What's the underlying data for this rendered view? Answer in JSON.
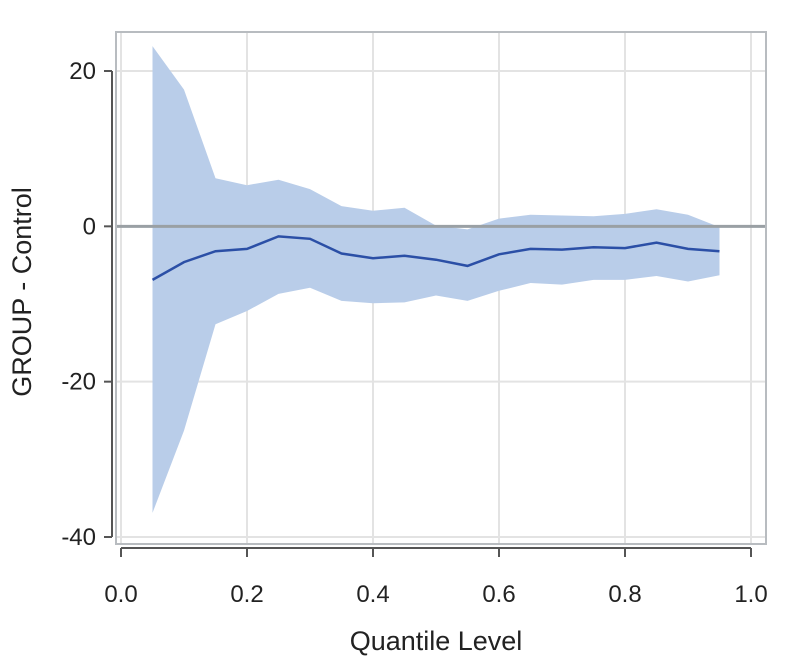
{
  "chart_data": {
    "type": "area",
    "title": "",
    "xlabel": "Quantile Level",
    "ylabel": "GROUP - Control",
    "xlim": [
      0.0,
      1.0
    ],
    "ylim": [
      -40,
      25
    ],
    "xticks": [
      "0.0",
      "0.2",
      "0.4",
      "0.6",
      "0.8",
      "1.0"
    ],
    "xtick_values": [
      0.0,
      0.2,
      0.4,
      0.6,
      0.8,
      1.0
    ],
    "yticks": [
      "20",
      "0",
      "-20",
      "-40"
    ],
    "ytick_values": [
      20,
      0,
      -20,
      -40
    ],
    "grid": true,
    "reference_line_y": 0,
    "x": [
      0.05,
      0.1,
      0.15,
      0.2,
      0.25,
      0.3,
      0.35,
      0.4,
      0.45,
      0.5,
      0.55,
      0.6,
      0.65,
      0.7,
      0.75,
      0.8,
      0.85,
      0.9,
      0.95
    ],
    "series": [
      {
        "values": [
          -6.9,
          -4.6,
          -3.2,
          -2.9,
          -1.3,
          -1.6,
          -3.5,
          -4.1,
          -3.8,
          -4.3,
          -5.1,
          -3.6,
          -2.9,
          -3.0,
          -2.7,
          -2.8,
          -2.1,
          -2.9,
          -3.2
        ]
      }
    ],
    "band": {
      "upper": [
        23.2,
        17.6,
        6.2,
        5.3,
        6.0,
        4.8,
        2.6,
        2.0,
        2.4,
        0.1,
        -0.4,
        1.0,
        1.5,
        1.4,
        1.3,
        1.6,
        2.2,
        1.5,
        -0.1
      ],
      "lower": [
        -36.9,
        -26.3,
        -12.6,
        -10.9,
        -8.7,
        -7.9,
        -9.6,
        -9.9,
        -9.8,
        -8.9,
        -9.6,
        -8.3,
        -7.3,
        -7.5,
        -6.9,
        -6.9,
        -6.4,
        -7.1,
        -6.3
      ]
    },
    "colors": {
      "line": "#2b4fa6",
      "band": "#b9cde9",
      "reference": "#9aa0a4",
      "grid": "#e3e3e3",
      "frame": "#b8bcc0",
      "text": "#222222"
    }
  }
}
